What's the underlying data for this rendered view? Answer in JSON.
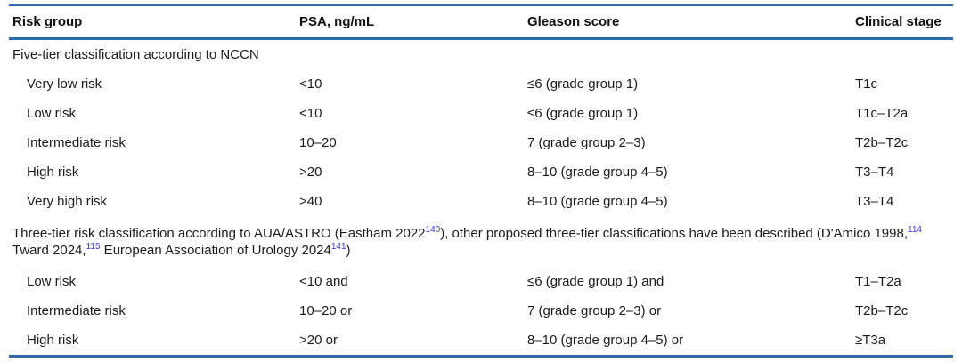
{
  "colors": {
    "rule_blue": "#2f6bab",
    "citation_ref_blue": "#3d3dd8",
    "text": "#1b1b1b"
  },
  "table": {
    "columns": [
      "Risk group",
      "PSA, ng/mL",
      "Gleason score",
      "Clinical stage"
    ],
    "column_keys": [
      "risk-group",
      "psa",
      "gleason-score",
      "clinical-stage"
    ],
    "sections": [
      {
        "title_parts": [
          "Five-tier classification according to NCCN"
        ],
        "rows": [
          [
            "Very low risk",
            "<10",
            "≤6 (grade group 1)",
            "T1c"
          ],
          [
            "Low risk",
            "<10",
            "≤6 (grade group 1)",
            "T1c–T2a"
          ],
          [
            "Intermediate risk",
            "10–20",
            "7 (grade group 2–3)",
            "T2b–T2c"
          ],
          [
            "High risk",
            ">20",
            "8–10 (grade group 4–5)",
            "T3–T4"
          ],
          [
            "Very high risk",
            ">40",
            "8–10 (grade group 4–5)",
            "T3–T4"
          ]
        ]
      },
      {
        "title_parts": [
          "Three-tier risk classification according to AUA/ASTRO (Eastham 2022",
          {
            "sup": "140"
          },
          "), other proposed three-tier classifications have been described (D'Amico 1998,",
          {
            "sup": "114"
          },
          " Tward 2024,",
          {
            "sup": "115"
          },
          " European Association of Urology 2024",
          {
            "sup": "141"
          },
          ")"
        ],
        "rows": [
          [
            "Low risk",
            "<10 and",
            "≤6 (grade group 1) and",
            "T1–T2a"
          ],
          [
            "Intermediate risk",
            "10–20 or",
            "7 (grade group 2–3) or",
            "T2b–T2c"
          ],
          [
            "High risk",
            ">20 or",
            "8–10 (grade group 4–5) or",
            "≥T3a"
          ]
        ]
      }
    ]
  }
}
